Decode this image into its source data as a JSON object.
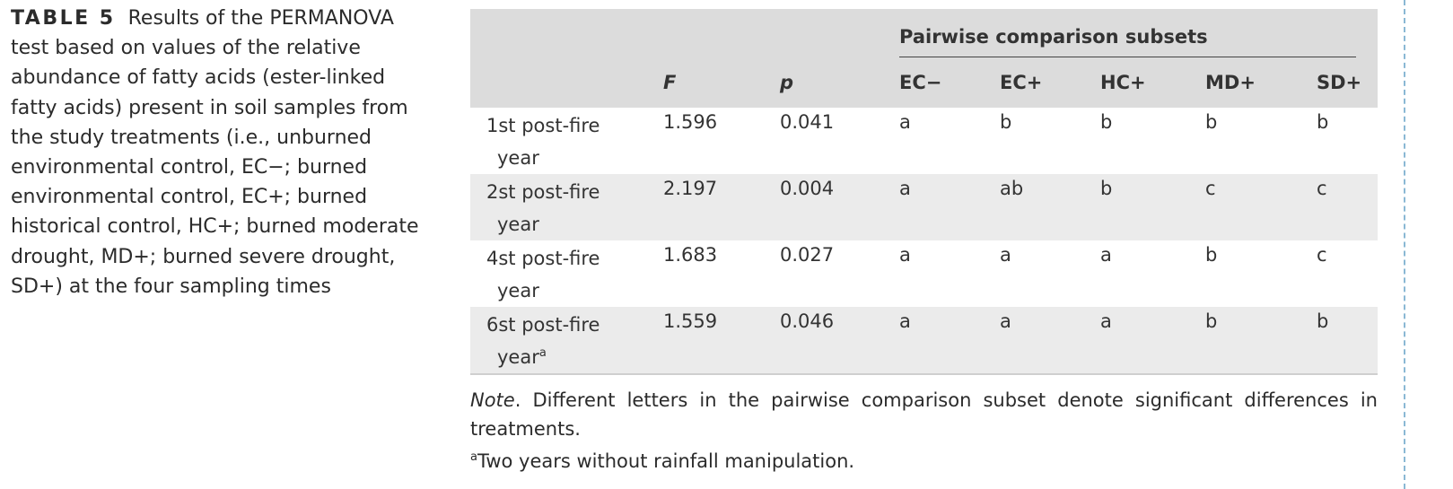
{
  "caption": {
    "label": "TABLE 5",
    "text": "Results of the PERMANOVA test based on values of the relative abundance of fatty acids (ester-linked fatty acids) present in soil samples from the study treatments (i.e., unburned environmental control, EC−; burned environmental control, EC+; burned historical control, HC+; burned moderate drought, MD+; burned severe drought, SD+) at the four sampling times"
  },
  "table": {
    "group_header": "Pairwise comparison subsets",
    "columns": [
      "F",
      "p",
      "EC−",
      "EC+",
      "HC+",
      "MD+",
      "SD+"
    ],
    "rows": [
      {
        "time_a": "1st post-fire",
        "time_b": "year",
        "sup": "",
        "F": "1.596",
        "p": "0.041",
        "ECm": "a",
        "ECp": "b",
        "HCp": "b",
        "MDp": "b",
        "SDp": "b"
      },
      {
        "time_a": "2st post-fire",
        "time_b": "year",
        "sup": "",
        "F": "2.197",
        "p": "0.004",
        "ECm": "a",
        "ECp": "ab",
        "HCp": "b",
        "MDp": "c",
        "SDp": "c"
      },
      {
        "time_a": "4st post-fire",
        "time_b": "year",
        "sup": "",
        "F": "1.683",
        "p": "0.027",
        "ECm": "a",
        "ECp": "a",
        "HCp": "a",
        "MDp": "b",
        "SDp": "c"
      },
      {
        "time_a": "6st post-fire",
        "time_b": "year",
        "sup": "a",
        "F": "1.559",
        "p": "0.046",
        "ECm": "a",
        "ECp": "a",
        "HCp": "a",
        "MDp": "b",
        "SDp": "b"
      }
    ]
  },
  "note": {
    "label": "Note",
    "text": ". Different letters in the pairwise comparison subset denote significant differences in treatments.",
    "footnote_mark": "a",
    "footnote_text": "Two years without rainfall manipulation."
  }
}
